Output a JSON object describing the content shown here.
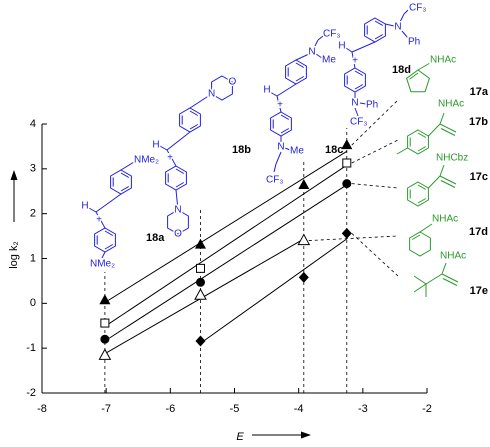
{
  "chart_data": {
    "type": "line",
    "x_label": "E",
    "y_label": "log k₂",
    "xlim": [
      -8,
      -2
    ],
    "xticks": [
      -8,
      -7,
      -6,
      -5,
      -4,
      -3,
      -2
    ],
    "ylim": [
      -2,
      4
    ],
    "yticks": [
      -2,
      -1,
      0,
      1,
      2,
      3,
      4
    ],
    "x": [
      -7.02,
      -5.53,
      -3.92,
      -3.25
    ],
    "electrophiles": [
      {
        "label": "18a",
        "color": "#1f1fe0",
        "texts": [
          "H",
          "+",
          "NMe₂",
          "NMe₂"
        ]
      },
      {
        "label": "18b",
        "color": "#1f1fe0",
        "texts": [
          "H",
          "+",
          "N",
          "O",
          "N",
          "O"
        ]
      },
      {
        "label": "18c",
        "color": "#1f1fe0",
        "texts": [
          "H",
          "+",
          "N",
          "Me",
          "CF₃",
          "N",
          "Me",
          "CF₃"
        ]
      },
      {
        "label": "18d",
        "color": "#1f1fe0",
        "texts": [
          "H",
          "+",
          "N",
          "Ph",
          "CF₃",
          "N",
          "Ph",
          "CF₃"
        ]
      }
    ],
    "structure_color": "#2a9a2a",
    "series": [
      {
        "name": "17a",
        "group": "NHAc",
        "marker": "triangle",
        "color": "#000000",
        "values": [
          0.07,
          1.31,
          2.64,
          3.53
        ]
      },
      {
        "name": "17b",
        "group": "NHAc",
        "marker": "square-open",
        "color": "#000000",
        "values": [
          -0.44,
          0.78,
          null,
          3.13
        ]
      },
      {
        "name": "17c",
        "group": "NHCbz",
        "marker": "circle",
        "color": "#000000",
        "values": [
          -0.8,
          0.47,
          null,
          2.67
        ]
      },
      {
        "name": "17d",
        "group": "NHAc",
        "marker": "triangle-open",
        "color": "#000000",
        "values": [
          -1.16,
          0.18,
          1.4,
          null
        ]
      },
      {
        "name": "17e",
        "group": "NHAc",
        "marker": "diamond",
        "color": "#000000",
        "values": [
          null,
          -0.84,
          0.58,
          1.56
        ]
      }
    ]
  }
}
